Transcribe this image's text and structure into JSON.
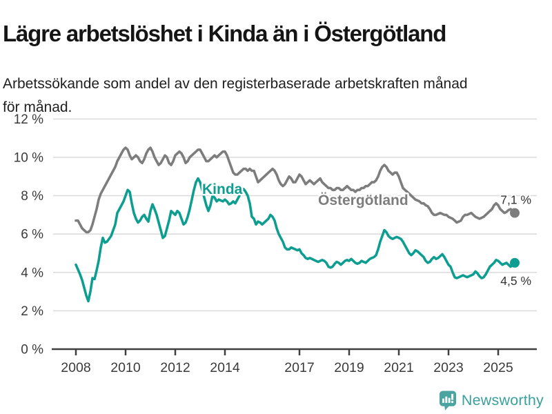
{
  "title": "Lägre arbetslöshet i Kinda än i Östergötland",
  "subtitle": "Arbetssökande som andel av den registerbaserade arbetskraften månad\nför månad.",
  "branding": {
    "logo_text": "Newsworthy",
    "logo_icon": "bar-chart-speech-bubble",
    "logo_color": "#4aa5a1"
  },
  "chart_data": {
    "type": "line",
    "title": "",
    "xlabel": "",
    "ylabel": "",
    "x_start": "2008-01",
    "x_end": "2025-09",
    "x_frequency": "monthly",
    "x_tick_years": [
      2008,
      2010,
      2012,
      2014,
      2017,
      2019,
      2021,
      2023,
      2025
    ],
    "y_ticks": [
      0,
      2,
      4,
      6,
      8,
      10,
      12
    ],
    "y_tick_suffix": " %",
    "ylim": [
      0,
      12.5
    ],
    "grid": true,
    "colors": {
      "axis_text": "#3a3a3a",
      "grid_line": "#dcdcdc",
      "axis_line": "#3f3f3f",
      "end_label_text": "#333333"
    },
    "series": [
      {
        "name": "Östergötland",
        "slug": "ostergotland",
        "color": "#7d7d7d",
        "end_label": "7,1 %",
        "end_label_side": "above",
        "values": [
          6.7,
          6.7,
          6.5,
          6.3,
          6.2,
          6.1,
          6.1,
          6.2,
          6.5,
          6.9,
          7.3,
          7.8,
          8.1,
          8.3,
          8.5,
          8.7,
          8.9,
          9.1,
          9.3,
          9.5,
          9.8,
          10.0,
          10.2,
          10.4,
          10.5,
          10.4,
          10.1,
          9.9,
          10.0,
          10.1,
          10.0,
          9.8,
          9.7,
          9.9,
          10.2,
          10.4,
          10.5,
          10.3,
          10.0,
          9.8,
          9.6,
          9.7,
          9.9,
          10.1,
          10.0,
          9.7,
          9.6,
          9.8,
          10.1,
          10.2,
          10.3,
          10.2,
          10.0,
          9.7,
          9.8,
          10.0,
          10.1,
          10.2,
          10.3,
          10.4,
          10.4,
          10.2,
          10.0,
          9.8,
          9.8,
          9.9,
          10.0,
          10.1,
          10.0,
          10.1,
          10.2,
          10.3,
          10.3,
          10.1,
          9.8,
          9.5,
          9.2,
          9.1,
          9.1,
          9.2,
          9.3,
          9.4,
          9.4,
          9.3,
          9.4,
          9.3,
          9.3,
          9.0,
          8.7,
          8.8,
          8.9,
          9.0,
          9.1,
          9.2,
          9.3,
          9.4,
          9.3,
          9.1,
          8.8,
          8.6,
          8.5,
          8.6,
          8.8,
          9.0,
          8.9,
          8.7,
          8.7,
          8.9,
          9.1,
          9.0,
          8.8,
          8.6,
          8.7,
          8.8,
          8.7,
          8.6,
          8.7,
          8.8,
          8.9,
          8.7,
          8.6,
          8.5,
          8.4,
          8.4,
          8.3,
          8.3,
          8.4,
          8.4,
          8.3,
          8.3,
          8.4,
          8.5,
          8.4,
          8.3,
          8.3,
          8.2,
          8.3,
          8.3,
          8.4,
          8.4,
          8.5,
          8.5,
          8.6,
          8.7,
          8.7,
          8.8,
          9.0,
          9.3,
          9.5,
          9.6,
          9.5,
          9.3,
          9.2,
          9.1,
          9.2,
          9.2,
          9.0,
          8.7,
          8.4,
          8.3,
          8.2,
          8.1,
          8.0,
          7.9,
          7.8,
          7.75,
          7.7,
          7.6,
          7.6,
          7.5,
          7.45,
          7.3,
          7.1,
          7.0,
          7.0,
          7.05,
          7.1,
          7.05,
          7.0,
          7.0,
          6.9,
          6.85,
          6.8,
          6.7,
          6.6,
          6.65,
          6.7,
          6.9,
          7.0,
          7.0,
          7.05,
          7.1,
          7.0,
          6.9,
          6.85,
          6.8,
          6.85,
          6.9,
          7.0,
          7.1,
          7.2,
          7.3,
          7.5,
          7.6,
          7.5,
          7.3,
          7.2,
          7.1,
          7.15,
          7.25,
          7.3,
          7.2,
          7.1
        ]
      },
      {
        "name": "Kinda",
        "slug": "kinda",
        "color": "#0d9e91",
        "end_label": "4,5 %",
        "end_label_side": "below",
        "values": [
          4.4,
          4.15,
          3.9,
          3.6,
          3.2,
          2.8,
          2.5,
          3.0,
          3.7,
          3.65,
          4.1,
          4.6,
          5.3,
          5.8,
          5.55,
          5.6,
          5.75,
          5.9,
          6.2,
          6.5,
          7.1,
          7.3,
          7.5,
          7.7,
          8.0,
          8.3,
          8.2,
          7.6,
          7.1,
          6.8,
          6.6,
          6.7,
          6.9,
          7.0,
          6.8,
          6.65,
          7.2,
          7.55,
          7.3,
          7.0,
          6.6,
          6.2,
          5.8,
          5.9,
          6.3,
          6.7,
          7.2,
          7.1,
          7.0,
          7.2,
          7.1,
          6.8,
          6.5,
          6.6,
          6.9,
          7.3,
          7.8,
          8.3,
          8.7,
          8.9,
          8.7,
          8.3,
          7.9,
          7.5,
          7.2,
          7.5,
          8.0,
          7.9,
          7.7,
          7.8,
          7.75,
          7.7,
          7.8,
          7.7,
          7.55,
          7.6,
          7.7,
          7.6,
          7.8,
          8.0,
          8.2,
          8.35,
          8.2,
          8.0,
          7.6,
          6.9,
          6.8,
          6.5,
          6.65,
          6.6,
          6.5,
          6.6,
          6.7,
          6.8,
          7.0,
          6.9,
          6.7,
          6.3,
          6.0,
          5.8,
          5.6,
          5.3,
          5.2,
          5.2,
          5.3,
          5.25,
          5.2,
          5.15,
          5.2,
          5.0,
          4.9,
          4.75,
          4.7,
          4.75,
          4.7,
          4.65,
          4.6,
          4.55,
          4.6,
          4.65,
          4.6,
          4.5,
          4.3,
          4.25,
          4.3,
          4.45,
          4.55,
          4.5,
          4.4,
          4.5,
          4.6,
          4.65,
          4.6,
          4.7,
          4.6,
          4.5,
          4.45,
          4.5,
          4.6,
          4.55,
          4.5,
          4.6,
          4.7,
          4.75,
          4.8,
          4.9,
          5.2,
          5.6,
          5.9,
          6.2,
          6.1,
          5.9,
          5.8,
          5.75,
          5.8,
          5.85,
          5.8,
          5.75,
          5.6,
          5.4,
          5.2,
          5.0,
          4.9,
          5.0,
          5.15,
          5.1,
          5.0,
          4.9,
          4.8,
          4.6,
          4.5,
          4.55,
          4.7,
          4.8,
          4.7,
          4.75,
          4.85,
          4.95,
          4.8,
          4.6,
          4.4,
          4.3,
          4.0,
          3.75,
          3.7,
          3.75,
          3.8,
          3.85,
          3.8,
          3.75,
          3.8,
          3.85,
          3.9,
          4.05,
          3.95,
          3.8,
          3.7,
          3.75,
          3.9,
          4.1,
          4.3,
          4.4,
          4.5,
          4.65,
          4.6,
          4.5,
          4.4,
          4.45,
          4.5,
          4.4,
          4.3,
          4.4,
          4.5
        ]
      }
    ]
  }
}
